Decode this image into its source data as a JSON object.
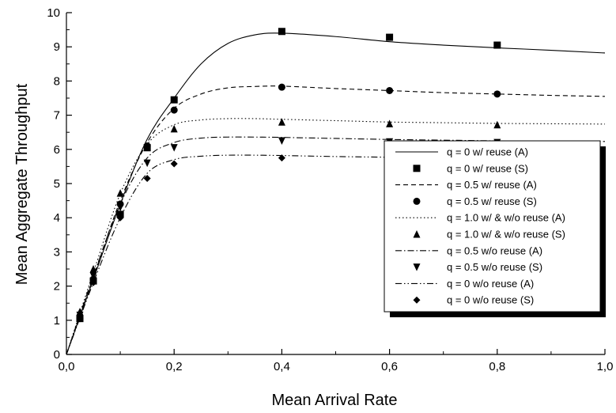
{
  "chart_data": {
    "type": "line",
    "xlabel": "Mean Arrival Rate",
    "ylabel": "Mean Aggregate Throughput",
    "xlim": [
      0,
      1.0
    ],
    "ylim": [
      0,
      10
    ],
    "x_ticks": [
      "0,0",
      "0,2",
      "0,4",
      "0,6",
      "0,8",
      "1,0"
    ],
    "y_ticks": [
      "0",
      "1",
      "2",
      "3",
      "4",
      "5",
      "6",
      "7",
      "8",
      "9",
      "10"
    ],
    "grid": false,
    "legend_position": "bottom-right",
    "series": [
      {
        "name": "q = 0 w/ reuse (A)",
        "kind": "line",
        "dash": "solid",
        "x": [
          0,
          0.05,
          0.1,
          0.15,
          0.2,
          0.25,
          0.3,
          0.35,
          0.4,
          0.5,
          0.6,
          0.7,
          0.8,
          0.9,
          1.0
        ],
        "y": [
          0,
          2.2,
          4.4,
          6.3,
          7.5,
          8.5,
          9.1,
          9.35,
          9.4,
          9.3,
          9.15,
          9.05,
          8.97,
          8.9,
          8.82
        ]
      },
      {
        "name": "q = 0 w/ reuse (S)",
        "kind": "markers",
        "marker": "square",
        "x": [
          0.025,
          0.05,
          0.1,
          0.15,
          0.2,
          0.4,
          0.6,
          0.8
        ],
        "y": [
          1.05,
          2.15,
          4.1,
          6.05,
          7.45,
          9.45,
          9.28,
          9.05
        ]
      },
      {
        "name": "q = 0.5 w/ reuse (A)",
        "kind": "line",
        "dash": "6,4",
        "x": [
          0,
          0.05,
          0.1,
          0.15,
          0.2,
          0.25,
          0.3,
          0.35,
          0.4,
          0.5,
          0.6,
          0.7,
          0.8,
          0.9,
          1.0
        ],
        "y": [
          0,
          2.25,
          4.5,
          6.2,
          7.2,
          7.62,
          7.8,
          7.84,
          7.85,
          7.78,
          7.72,
          7.66,
          7.62,
          7.58,
          7.55
        ]
      },
      {
        "name": "q = 0.5 w/ reuse (S)",
        "kind": "markers",
        "marker": "circle",
        "x": [
          0.025,
          0.05,
          0.1,
          0.15,
          0.2,
          0.4,
          0.6,
          0.8
        ],
        "y": [
          1.05,
          2.2,
          4.4,
          6.1,
          7.15,
          7.82,
          7.72,
          7.62
        ]
      },
      {
        "name": "q = 1.0 w/ & w/o reuse (A)",
        "kind": "line",
        "dash": "1.5,3",
        "x": [
          0,
          0.05,
          0.1,
          0.15,
          0.2,
          0.25,
          0.3,
          0.35,
          0.4,
          0.5,
          0.6,
          0.7,
          0.8,
          0.9,
          1.0
        ],
        "y": [
          0,
          2.4,
          4.7,
          6.15,
          6.72,
          6.86,
          6.9,
          6.9,
          6.88,
          6.84,
          6.8,
          6.78,
          6.76,
          6.75,
          6.74
        ]
      },
      {
        "name": "q = 1.0 w/ & w/o reuse (S)",
        "kind": "markers",
        "marker": "triangle-up",
        "x": [
          0.025,
          0.05,
          0.1,
          0.15,
          0.2,
          0.4,
          0.6,
          0.8
        ],
        "y": [
          1.25,
          2.5,
          4.72,
          6.05,
          6.6,
          6.8,
          6.75,
          6.72
        ]
      },
      {
        "name": "q = 0.5 w/o reuse (A)",
        "kind": "line",
        "dash": "8,3,1.5,3",
        "x": [
          0,
          0.05,
          0.1,
          0.15,
          0.2,
          0.25,
          0.3,
          0.35,
          0.4,
          0.5,
          0.6,
          0.7,
          0.8,
          0.9,
          1.0
        ],
        "y": [
          0,
          2.3,
          4.4,
          5.75,
          6.2,
          6.33,
          6.36,
          6.36,
          6.35,
          6.32,
          6.29,
          6.27,
          6.25,
          6.24,
          6.23
        ]
      },
      {
        "name": "q = 0.5 w/o reuse (S)",
        "kind": "markers",
        "marker": "triangle-down",
        "x": [
          0.025,
          0.05,
          0.1,
          0.15,
          0.2,
          0.4,
          0.6,
          0.8
        ],
        "y": [
          1.15,
          2.3,
          4.3,
          5.6,
          6.05,
          6.25,
          6.22,
          6.2
        ]
      },
      {
        "name": "q = 0 w/o reuse (A)",
        "kind": "line",
        "dash": "8,3,1.5,3,1.5,3",
        "x": [
          0,
          0.05,
          0.1,
          0.15,
          0.2,
          0.25,
          0.3,
          0.35,
          0.4,
          0.5,
          0.6,
          0.7,
          0.8,
          0.9,
          1.0
        ],
        "y": [
          0,
          2.1,
          4.0,
          5.3,
          5.7,
          5.8,
          5.83,
          5.83,
          5.82,
          5.79,
          5.77,
          5.75,
          5.73,
          5.72,
          5.71
        ]
      },
      {
        "name": "q = 0 w/o reuse (S)",
        "kind": "markers",
        "marker": "diamond",
        "x": [
          0.025,
          0.05,
          0.1,
          0.15,
          0.2,
          0.4,
          0.6,
          0.8
        ],
        "y": [
          1.05,
          2.1,
          4.0,
          5.15,
          5.58,
          5.75,
          5.72,
          5.7
        ]
      }
    ]
  }
}
